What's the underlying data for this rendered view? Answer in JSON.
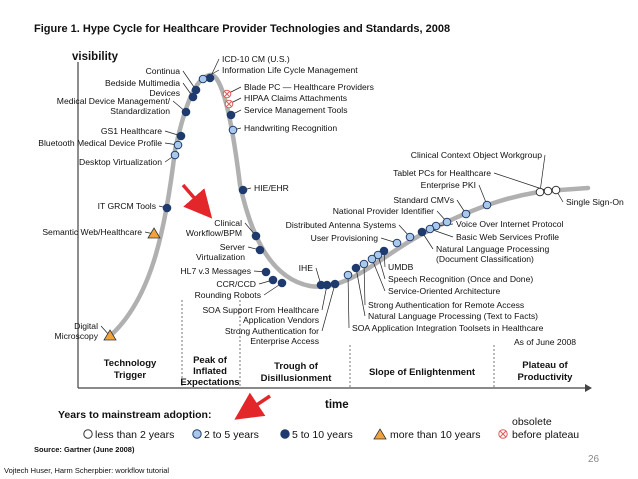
{
  "chart_data": {
    "type": "line",
    "title": "Figure 1. Hype Cycle for Healthcare Provider Technologies and Standards, 2008",
    "ylabel": "visibility",
    "xlabel": "time",
    "as_of": "As of June 2008",
    "source": "Source: Gartner (June 2008)",
    "phases": [
      "Technology Trigger",
      "Peak of Inflated Expectations",
      "Trough of Disillusionment",
      "Slope of Enlightenment",
      "Plateau of Productivity"
    ],
    "legend_title": "Years to mainstream adoption:",
    "legend": [
      {
        "name": "less than 2 years",
        "marker": "open-circle"
      },
      {
        "name": "2 to 5 years",
        "marker": "light-blue-circle"
      },
      {
        "name": "5 to 10 years",
        "marker": "dark-blue-circle"
      },
      {
        "name": "more than 10 years",
        "marker": "triangle"
      },
      {
        "name": "obsolete before plateau",
        "marker": "crossed-circle"
      }
    ],
    "technologies": [
      {
        "label": "ICD-10 CM (U.S.)",
        "category": "5 to 10 years"
      },
      {
        "label": "Information Life Cycle Management",
        "category": "2 to 5 years"
      },
      {
        "label": "Continua",
        "category": "5 to 10 years"
      },
      {
        "label": "Bedside Multimedia Devices",
        "category": "5 to 10 years"
      },
      {
        "label": "Blade PC — Healthcare Providers",
        "category": "obsolete before plateau"
      },
      {
        "label": "HIPAA Claims Attachments",
        "category": "obsolete before plateau"
      },
      {
        "label": "Service Management Tools",
        "category": "5 to 10 years"
      },
      {
        "label": "Medical Device Management/ Standardization",
        "category": "5 to 10 years"
      },
      {
        "label": "Handwriting Recognition",
        "category": "2 to 5 years"
      },
      {
        "label": "GS1 Healthcare",
        "category": "5 to 10 years"
      },
      {
        "label": "Bluetooth Medical Device Profile",
        "category": "2 to 5 years"
      },
      {
        "label": "Desktop Virtualization",
        "category": "2 to 5 years"
      },
      {
        "label": "HIE/EHR",
        "category": "5 to 10 years"
      },
      {
        "label": "IT GRCM Tools",
        "category": "5 to 10 years"
      },
      {
        "label": "Semantic Web/Healthcare",
        "category": "more than 10 years"
      },
      {
        "label": "Clinical Workflow/BPM",
        "category": "5 to 10 years"
      },
      {
        "label": "Server Virtualization",
        "category": "5 to 10 years"
      },
      {
        "label": "HL7 v.3 Messages",
        "category": "5 to 10 years"
      },
      {
        "label": "CCR/CCD",
        "category": "5 to 10 years"
      },
      {
        "label": "Rounding Robots",
        "category": "5 to 10 years"
      },
      {
        "label": "IHE",
        "category": "5 to 10 years"
      },
      {
        "label": "SOA Support From Healthcare Application Vendors",
        "category": "5 to 10 years"
      },
      {
        "label": "Strong Authentication for Enterprise Access",
        "category": "5 to 10 years"
      },
      {
        "label": "Digital Microscopy",
        "category": "more than 10 years"
      },
      {
        "label": "Clinical Context Object Workgroup",
        "category": "less than 2 years"
      },
      {
        "label": "Tablet PCs for Healthcare",
        "category": "less than 2 years"
      },
      {
        "label": "Enterprise PKI",
        "category": "2 to 5 years"
      },
      {
        "label": "Single Sign-On",
        "category": "less than 2 years"
      },
      {
        "label": "Standard CMVs",
        "category": "2 to 5 years"
      },
      {
        "label": "National Provider Identifier",
        "category": "2 to 5 years"
      },
      {
        "label": "Distributed Antenna Systems",
        "category": "2 to 5 years"
      },
      {
        "label": "User Provisioning",
        "category": "2 to 5 years"
      },
      {
        "label": "Voice Over Internet Protocol",
        "category": "2 to 5 years"
      },
      {
        "label": "Basic Web Services Profile",
        "category": "2 to 5 years"
      },
      {
        "label": "Natural Language Processing (Document Classification)",
        "category": "5 to 10 years"
      },
      {
        "label": "UMDB",
        "category": "5 to 10 years"
      },
      {
        "label": "Speech Recognition (Once and Done)",
        "category": "2 to 5 years"
      },
      {
        "label": "Service-Oriented Architecture",
        "category": "2 to 5 years"
      },
      {
        "label": "Strong Authentication for Remote Access",
        "category": "2 to 5 years"
      },
      {
        "label": "Natural Language Processing (Text to Facts)",
        "category": "5 to 10 years"
      },
      {
        "label": "SOA Application Integration Toolsets in Healthcare",
        "category": "2 to 5 years"
      }
    ]
  },
  "slide": {
    "page_number": "26",
    "footer": "Vojtech Huser, Harm Scherpbier: workflow tutorial"
  },
  "colors": {
    "curve": "#b0b0b0",
    "dark_blue": "#1f3b6e",
    "light_blue": "#a9c8ea",
    "triangle": "#f0a23c",
    "obsolete": "#e05a5a",
    "arrow": "#e3262a"
  }
}
